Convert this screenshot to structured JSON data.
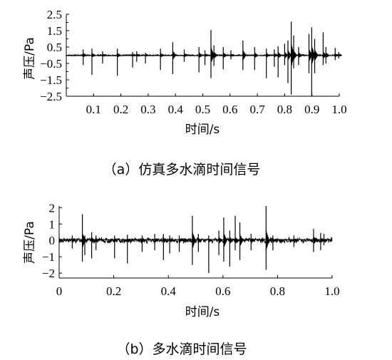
{
  "chart_data": [
    {
      "type": "line",
      "caption": "（a）仿真多水滴时间信号",
      "xlabel": "时间/s",
      "ylabel": "声压/Pa",
      "xlim": [
        0,
        1.0
      ],
      "ylim": [
        -2.5,
        2.5
      ],
      "xticks": [
        "0.1",
        "0.2",
        "0.3",
        "0.4",
        "0.5",
        "0.6",
        "0.7",
        "0.8",
        "0.9",
        "1.0"
      ],
      "xtick_values": [
        0.1,
        0.2,
        0.3,
        0.4,
        0.5,
        0.6,
        0.7,
        0.8,
        0.9,
        1.0
      ],
      "yticks": [
        "2.5",
        "1.5",
        "0.5",
        "−0.5",
        "−1.5",
        "−2.5"
      ],
      "ytick_values": [
        2.5,
        1.5,
        0.5,
        -0.5,
        -1.5,
        -2.5
      ],
      "minor_yticks": [
        2.0,
        1.0,
        0.0,
        -1.0,
        -2.0
      ],
      "grid": false,
      "spikes": [
        {
          "x": 0.062,
          "ymin": -0.6,
          "ymax": 0.35
        },
        {
          "x": 0.094,
          "ymin": -1.2,
          "ymax": 0.4
        },
        {
          "x": 0.133,
          "ymin": -0.5,
          "ymax": 0.25
        },
        {
          "x": 0.187,
          "ymin": -1.25,
          "ymax": 0.4
        },
        {
          "x": 0.243,
          "ymin": -0.75,
          "ymax": 0.2
        },
        {
          "x": 0.258,
          "ymin": -0.4,
          "ymax": 0.25
        },
        {
          "x": 0.29,
          "ymin": -0.5,
          "ymax": 0.15
        },
        {
          "x": 0.345,
          "ymin": -0.9,
          "ymax": 0.4
        },
        {
          "x": 0.39,
          "ymin": -1.15,
          "ymax": 0.8
        },
        {
          "x": 0.432,
          "ymin": -0.4,
          "ymax": 0.35
        },
        {
          "x": 0.486,
          "ymin": -1.05,
          "ymax": 0.5
        },
        {
          "x": 0.508,
          "ymin": -0.6,
          "ymax": 0.3
        },
        {
          "x": 0.53,
          "ymin": -1.4,
          "ymax": 1.55
        },
        {
          "x": 0.541,
          "ymin": -0.65,
          "ymax": 0.6
        },
        {
          "x": 0.575,
          "ymin": -0.85,
          "ymax": 0.5
        },
        {
          "x": 0.603,
          "ymin": -0.25,
          "ymax": 0.3
        },
        {
          "x": 0.647,
          "ymin": -0.9,
          "ymax": 0.9
        },
        {
          "x": 0.69,
          "ymin": -0.9,
          "ymax": 0.5
        },
        {
          "x": 0.733,
          "ymin": -1.4,
          "ymax": 0.4
        },
        {
          "x": 0.762,
          "ymin": -0.7,
          "ymax": 0.35
        },
        {
          "x": 0.776,
          "ymin": -1.35,
          "ymax": 0.55
        },
        {
          "x": 0.8,
          "ymin": -0.6,
          "ymax": 0.7
        },
        {
          "x": 0.812,
          "ymin": -1.7,
          "ymax": 0.9
        },
        {
          "x": 0.824,
          "ymin": -2.4,
          "ymax": 2.05
        },
        {
          "x": 0.833,
          "ymin": -0.8,
          "ymax": 1.2
        },
        {
          "x": 0.851,
          "ymin": -0.6,
          "ymax": 0.5
        },
        {
          "x": 0.889,
          "ymin": -1.1,
          "ymax": 1.3
        },
        {
          "x": 0.899,
          "ymin": -2.5,
          "ymax": 1.7
        },
        {
          "x": 0.91,
          "ymin": -1.1,
          "ymax": 1.0
        },
        {
          "x": 0.941,
          "ymin": -0.6,
          "ymax": 1.4
        },
        {
          "x": 0.951,
          "ymin": -0.5,
          "ymax": 0.5
        },
        {
          "x": 0.985,
          "ymin": -0.3,
          "ymax": 0.45
        },
        {
          "x": 0.998,
          "ymin": -0.2,
          "ymax": 0.2
        }
      ]
    },
    {
      "type": "line",
      "caption": "（b）多水滴时间信号",
      "xlabel": "时间/s",
      "ylabel": "声压/Pa",
      "xlim": [
        0,
        1.0
      ],
      "ylim": [
        -2.3,
        2.1
      ],
      "xticks": [
        "0",
        "0.2",
        "0.4",
        "0.6",
        "0.8",
        "1.0"
      ],
      "xtick_values": [
        0,
        0.2,
        0.4,
        0.6,
        0.8,
        1.0
      ],
      "yticks": [
        "2",
        "1",
        "0",
        "−1",
        "−2"
      ],
      "ytick_values": [
        2,
        1,
        0,
        -1,
        -2
      ],
      "grid": false,
      "spikes": [
        {
          "x": 0.048,
          "ymin": -0.5,
          "ymax": 0.3
        },
        {
          "x": 0.085,
          "ymin": -1.3,
          "ymax": 1.6
        },
        {
          "x": 0.094,
          "ymin": -0.9,
          "ymax": 0.3
        },
        {
          "x": 0.119,
          "ymin": -1.1,
          "ymax": 0.5
        },
        {
          "x": 0.135,
          "ymin": -0.6,
          "ymax": 0.3
        },
        {
          "x": 0.203,
          "ymin": -1.1,
          "ymax": 0.3
        },
        {
          "x": 0.25,
          "ymin": -1.4,
          "ymax": 0.35
        },
        {
          "x": 0.304,
          "ymin": -0.7,
          "ymax": 0.3
        },
        {
          "x": 0.35,
          "ymin": -0.6,
          "ymax": 0.4
        },
        {
          "x": 0.382,
          "ymin": -1.2,
          "ymax": 0.4
        },
        {
          "x": 0.405,
          "ymin": -0.8,
          "ymax": 0.3
        },
        {
          "x": 0.44,
          "ymin": -0.7,
          "ymax": 0.3
        },
        {
          "x": 0.488,
          "ymin": -1.5,
          "ymax": 1.5
        },
        {
          "x": 0.51,
          "ymin": -0.7,
          "ymax": 0.4
        },
        {
          "x": 0.548,
          "ymin": -2.0,
          "ymax": 0.3
        },
        {
          "x": 0.585,
          "ymin": -0.9,
          "ymax": 0.6
        },
        {
          "x": 0.603,
          "ymin": -1.3,
          "ymax": 1.4
        },
        {
          "x": 0.625,
          "ymin": -1.6,
          "ymax": 0.6
        },
        {
          "x": 0.645,
          "ymin": -0.6,
          "ymax": 1.5
        },
        {
          "x": 0.662,
          "ymin": -1.2,
          "ymax": 1.1
        },
        {
          "x": 0.703,
          "ymin": -0.6,
          "ymax": 0.4
        },
        {
          "x": 0.758,
          "ymin": -1.8,
          "ymax": 2.1
        },
        {
          "x": 0.783,
          "ymin": -0.6,
          "ymax": 0.3
        },
        {
          "x": 0.86,
          "ymin": -0.4,
          "ymax": 0.3
        },
        {
          "x": 0.932,
          "ymin": -0.7,
          "ymax": 0.7
        },
        {
          "x": 0.958,
          "ymin": -0.6,
          "ymax": 0.45
        },
        {
          "x": 0.97,
          "ymin": -0.3,
          "ymax": 0.4
        }
      ]
    }
  ]
}
